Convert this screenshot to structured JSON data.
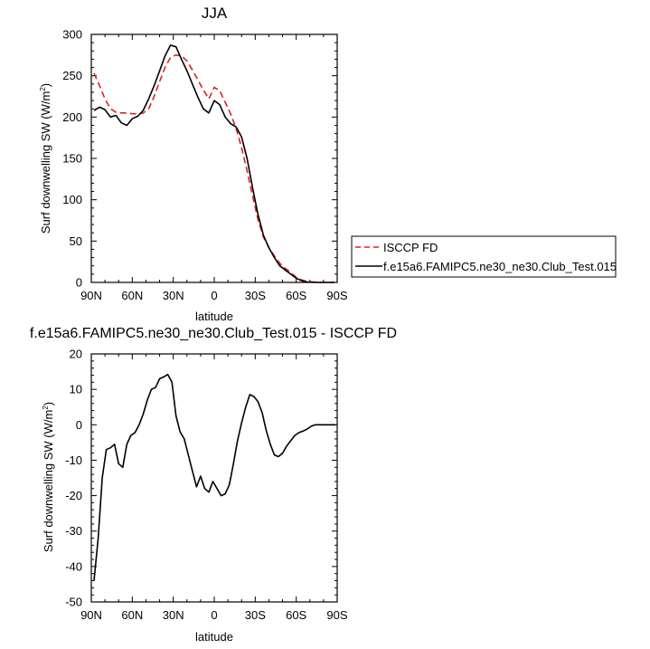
{
  "chart_data": [
    {
      "type": "line",
      "title": "JJA",
      "xlabel": "latitude",
      "ylabel_main": "Surf downwelling SW (W/m",
      "ylabel_sup": "2",
      "ylabel_close": ")",
      "xlim": [
        90,
        -90
      ],
      "ylim": [
        0,
        300
      ],
      "xticks": [
        90,
        60,
        30,
        0,
        -30,
        -60,
        -90
      ],
      "xtick_labels": [
        "90N",
        "60N",
        "30N",
        "0",
        "30S",
        "60S",
        "90S"
      ],
      "yticks": [
        0,
        50,
        100,
        150,
        200,
        250,
        300
      ],
      "ytick_labels": [
        "0",
        "50",
        "100",
        "150",
        "200",
        "250",
        "300"
      ],
      "legend_position": "right",
      "series": [
        {
          "name": "ISCCP FD",
          "color": "#e0201b",
          "dash": "dashed",
          "x": [
            88,
            84,
            80,
            76,
            72,
            68,
            64,
            60,
            56,
            52,
            48,
            44,
            40,
            36,
            32,
            28,
            24,
            20,
            16,
            12,
            8,
            4,
            0,
            -4,
            -8,
            -12,
            -16,
            -20,
            -24,
            -28,
            -32,
            -36,
            -40,
            -44,
            -48,
            -52,
            -56,
            -60,
            -64,
            -68,
            -72,
            -76,
            -80,
            -84,
            -88
          ],
          "values": [
            253,
            238,
            222,
            210,
            206,
            205,
            205,
            204,
            204,
            205,
            210,
            225,
            243,
            260,
            272,
            275,
            274,
            268,
            257,
            245,
            233,
            222,
            236,
            232,
            218,
            204,
            186,
            163,
            135,
            105,
            76,
            55,
            42,
            32,
            23,
            17,
            12,
            6,
            3,
            1,
            0.5,
            0.2,
            0,
            0,
            0
          ]
        },
        {
          "name": "f.e15a6.FAMIPC5.ne30_ne30.Club_Test.015",
          "color": "#000000",
          "dash": "solid",
          "x": [
            88,
            84,
            80,
            76,
            72,
            68,
            64,
            60,
            56,
            52,
            48,
            44,
            40,
            36,
            32,
            28,
            24,
            20,
            16,
            12,
            8,
            4,
            0,
            -4,
            -8,
            -12,
            -16,
            -20,
            -24,
            -28,
            -32,
            -36,
            -40,
            -44,
            -48,
            -52,
            -56,
            -60,
            -64,
            -68,
            -72,
            -76,
            -80,
            -84,
            -88
          ],
          "values": [
            208,
            212,
            209,
            200,
            202,
            193,
            190,
            198,
            201,
            208,
            222,
            238,
            256,
            274,
            287,
            285,
            270,
            256,
            240,
            224,
            210,
            205,
            220,
            215,
            200,
            192,
            188,
            176,
            150,
            115,
            82,
            57,
            42,
            30,
            20,
            15,
            10,
            5,
            2,
            0.5,
            0.2,
            0,
            0,
            0,
            0
          ]
        }
      ]
    },
    {
      "type": "line",
      "title": "f.e15a6.FAMIPC5.ne30_ne30.Club_Test.015 - ISCCP FD",
      "xlabel": "latitude",
      "ylabel_main": "Surf downwelling SW (W/m",
      "ylabel_sup": "2",
      "ylabel_close": ")",
      "xlim": [
        90,
        -90
      ],
      "ylim": [
        -50,
        20
      ],
      "xticks": [
        90,
        60,
        30,
        0,
        -30,
        -60,
        -90
      ],
      "xtick_labels": [
        "90N",
        "60N",
        "30N",
        "0",
        "30S",
        "60S",
        "90S"
      ],
      "yticks": [
        -50,
        -40,
        -30,
        -20,
        -10,
        0,
        10,
        20
      ],
      "ytick_labels": [
        "-50",
        "-40",
        "-30",
        "-20",
        "-10",
        "0",
        "10",
        "20"
      ],
      "series": [
        {
          "color": "#000000",
          "dash": "solid",
          "x": [
            88,
            85,
            82,
            79,
            76,
            73,
            70,
            67,
            64,
            61,
            58,
            55,
            52,
            49,
            46,
            43,
            40,
            37,
            34,
            31,
            28,
            25,
            22,
            19,
            16,
            13,
            10,
            7,
            4,
            1,
            -2,
            -5,
            -8,
            -11,
            -14,
            -17,
            -20,
            -23,
            -26,
            -29,
            -32,
            -35,
            -38,
            -41,
            -44,
            -47,
            -50,
            -53,
            -56,
            -59,
            -62,
            -65,
            -68,
            -71,
            -74,
            -77,
            -80,
            -83,
            -86,
            -89
          ],
          "values": [
            -44,
            -32,
            -15,
            -7,
            -6.5,
            -5.5,
            -11,
            -12,
            -5.5,
            -3,
            -2.2,
            0,
            3,
            7,
            10,
            10.5,
            13,
            13.5,
            14.2,
            12,
            2.5,
            -2,
            -4,
            -8.5,
            -13,
            -17.5,
            -14.5,
            -18,
            -19,
            -16,
            -18,
            -20,
            -19.5,
            -17,
            -11,
            -4.5,
            0.5,
            5,
            8.5,
            8,
            6.5,
            3.5,
            -1.5,
            -5.5,
            -8.5,
            -9,
            -8,
            -6,
            -4.5,
            -3,
            -2.2,
            -1.8,
            -1.2,
            -0.4,
            0,
            0,
            0,
            0,
            0,
            0
          ]
        }
      ]
    }
  ]
}
